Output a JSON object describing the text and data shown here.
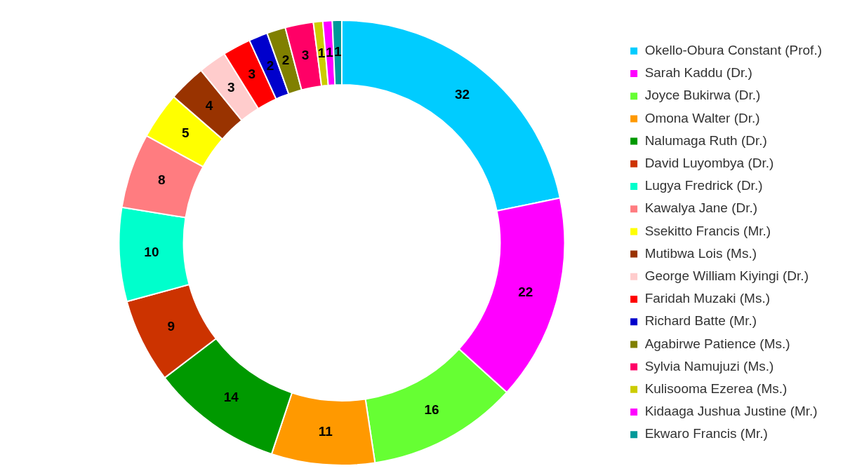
{
  "chart_data": {
    "type": "donut",
    "categories": [
      "Okello-Obura Constant (Prof.)",
      "Sarah Kaddu (Dr.)",
      "Joyce Bukirwa (Dr.)",
      "Omona Walter (Dr.)",
      "Nalumaga Ruth (Dr.)",
      "David Luyombya (Dr.)",
      "Lugya Fredrick (Dr.)",
      "Kawalya Jane (Dr.)",
      "Ssekitto Francis (Mr.)",
      "Mutibwa Lois (Ms.)",
      "George William Kiyingi (Dr.)",
      "Faridah Muzaki (Ms.)",
      "Richard Batte (Mr.)",
      "Agabirwe Patience (Ms.)",
      "Sylvia Namujuzi (Ms.)",
      "Kulisooma Ezerea (Ms.)",
      "Kidaaga Jushua Justine (Mr.)",
      "Ekwaro Francis (Mr.)"
    ],
    "values": [
      32,
      22,
      16,
      11,
      14,
      9,
      10,
      8,
      5,
      4,
      3,
      3,
      2,
      2,
      3,
      1,
      1,
      1
    ],
    "colors": [
      "#00ccff",
      "#ff00ff",
      "#66ff33",
      "#ff9900",
      "#009900",
      "#cc3300",
      "#00ffcc",
      "#ff7c80",
      "#ffff00",
      "#993300",
      "#ffcccc",
      "#ff0000",
      "#0000cc",
      "#808000",
      "#ff0066",
      "#cccc00",
      "#ff00ff",
      "#009999"
    ],
    "data_labels": true,
    "legend": "right"
  }
}
